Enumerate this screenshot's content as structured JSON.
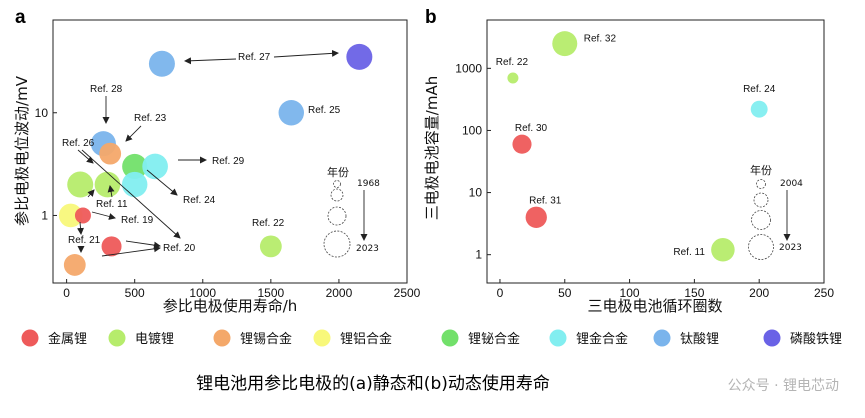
{
  "caption": "锂电池用参比电极的(a)静态和(b)动态使用寿命",
  "watermark": "公众号 · 锂电芯动",
  "colors": {
    "金属锂": "#ee5a5a",
    "电镀锂": "#b6ec6c",
    "锂锡合金": "#f4a86a",
    "锂铝合金": "#f8f87a",
    "锂铋合金": "#72e06a",
    "锂金合金": "#82eef0",
    "钛酸锂": "#7ab4ec",
    "磷酸铁锂": "#6a62e6"
  },
  "legend": [
    {
      "label": "金属锂",
      "color_key": "金属锂"
    },
    {
      "label": "电镀锂",
      "color_key": "电镀锂"
    },
    {
      "label": "锂锡合金",
      "color_key": "锂锡合金"
    },
    {
      "label": "锂铝合金",
      "color_key": "锂铝合金"
    },
    {
      "label": "锂铋合金",
      "color_key": "锂铋合金"
    },
    {
      "label": "锂金合金",
      "color_key": "锂金合金"
    },
    {
      "label": "钛酸锂",
      "color_key": "钛酸锂"
    },
    {
      "label": "磷酸铁锂",
      "color_key": "磷酸铁锂"
    }
  ],
  "chart_data": [
    {
      "panel": "a",
      "type": "scatter",
      "xlabel": "参比电极使用寿命/h",
      "ylabel": "参比电极电位波动/mV",
      "xlim": [
        -100,
        2500
      ],
      "xticks": [
        0,
        500,
        1000,
        1500,
        2000,
        2500
      ],
      "ylim": [
        0.22,
        80
      ],
      "yscale": "log",
      "yticks": [
        1,
        10
      ],
      "size_legend": {
        "title": "年份",
        "years": [
          "1968",
          "2023"
        ],
        "side": "right"
      },
      "points": [
        {
          "x": 2150,
          "y": 35,
          "material": "磷酸铁锂",
          "label": "Ref. 27",
          "year": 2023
        },
        {
          "x": 700,
          "y": 30,
          "material": "钛酸锂",
          "label": "",
          "year": 2023
        },
        {
          "x": 1650,
          "y": 10,
          "material": "钛酸锂",
          "label": "Ref. 25",
          "year": 2020
        },
        {
          "x": 270,
          "y": 5,
          "material": "钛酸锂",
          "label": "Ref. 28",
          "year": 2018
        },
        {
          "x": 320,
          "y": 4,
          "material": "锂锡合金",
          "label": "Ref. 23",
          "year": 2000
        },
        {
          "x": 500,
          "y": 3,
          "material": "锂铋合金",
          "label": "",
          "year": 2018
        },
        {
          "x": 650,
          "y": 3,
          "material": "锂金合金",
          "label": "Ref. 29",
          "year": 2021
        },
        {
          "x": 500,
          "y": 2,
          "material": "锂金合金",
          "label": "Ref. 24",
          "year": 2020
        },
        {
          "x": 100,
          "y": 2,
          "material": "电镀锂",
          "label": "Ref. 26",
          "year": 2023
        },
        {
          "x": 300,
          "y": 2,
          "material": "电镀锂",
          "label": "Ref. 11",
          "year": 2021
        },
        {
          "x": 30,
          "y": 1,
          "material": "锂铝合金",
          "label": "",
          "year": 2010
        },
        {
          "x": 120,
          "y": 1,
          "material": "金属锂",
          "label": "Ref. 19",
          "year": 1968
        },
        {
          "x": 330,
          "y": 0.5,
          "material": "金属锂",
          "label": "Ref. 20",
          "year": 1990
        },
        {
          "x": 60,
          "y": 0.33,
          "material": "锂锡合金",
          "label": "Ref. 21",
          "year": 2000
        },
        {
          "x": 1500,
          "y": 0.5,
          "material": "电镀锂",
          "label": "Ref. 22",
          "year": 2000
        }
      ],
      "annotations": [
        {
          "text": "Ref. 27"
        },
        {
          "text": "Ref. 25"
        },
        {
          "text": "Ref. 28"
        },
        {
          "text": "Ref. 23"
        },
        {
          "text": "Ref. 26"
        },
        {
          "text": "Ref. 29"
        },
        {
          "text": "Ref. 24"
        },
        {
          "text": "Ref. 11"
        },
        {
          "text": "Ref. 19"
        },
        {
          "text": "Ref. 21"
        },
        {
          "text": "Ref. 20"
        },
        {
          "text": "Ref. 22"
        }
      ]
    },
    {
      "panel": "b",
      "type": "scatter",
      "xlabel": "三电极电池循环圈数",
      "ylabel": "三电极电池容量/mAh",
      "xlim": [
        -10,
        250
      ],
      "xticks": [
        0,
        50,
        100,
        150,
        200,
        250
      ],
      "ylim": [
        0.35,
        6000
      ],
      "yscale": "log",
      "yticks": [
        1,
        10,
        100,
        1000
      ],
      "ytick_labels": [
        "1",
        "10",
        "100",
        "1000"
      ],
      "size_legend": {
        "title": "年份",
        "years": [
          "2004",
          "2023"
        ],
        "side": "right"
      },
      "points": [
        {
          "x": 50,
          "y": 2500,
          "material": "电镀锂",
          "label": "Ref. 32",
          "year": 2023
        },
        {
          "x": 10,
          "y": 700,
          "material": "电镀锂",
          "label": "Ref. 22",
          "year": 2004
        },
        {
          "x": 200,
          "y": 220,
          "material": "锂金合金",
          "label": "Ref. 24",
          "year": 2012
        },
        {
          "x": 17,
          "y": 60,
          "material": "金属锂",
          "label": "Ref. 30",
          "year": 2015
        },
        {
          "x": 28,
          "y": 4,
          "material": "金属锂",
          "label": "Ref. 31",
          "year": 2018
        },
        {
          "x": 172,
          "y": 1.2,
          "material": "电镀锂",
          "label": "Ref. 11",
          "year": 2021
        }
      ]
    }
  ]
}
